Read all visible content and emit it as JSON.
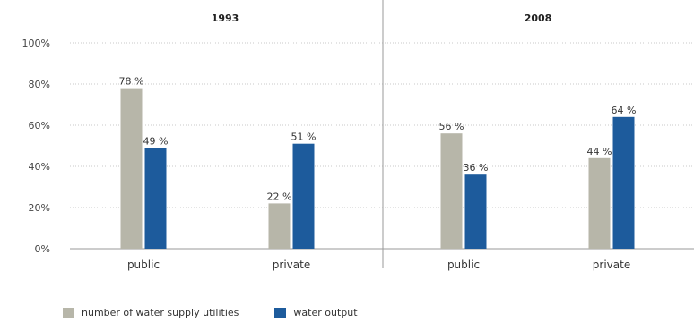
{
  "chart_data": {
    "type": "bar",
    "groups": [
      {
        "title": "1993",
        "categories": [
          "public",
          "private"
        ]
      },
      {
        "title": "2008",
        "categories": [
          "public",
          "private"
        ]
      }
    ],
    "series": [
      {
        "name": "number of water supply utilities",
        "color": "#b7b6a9",
        "values": [
          78,
          22,
          56,
          44
        ]
      },
      {
        "name": "water output",
        "color": "#1d5b9c",
        "values": [
          49,
          51,
          36,
          64
        ]
      }
    ],
    "data_labels": {
      "number of water supply utilities": [
        "78 %",
        "22 %",
        "56 %",
        "44 %"
      ],
      "water output": [
        "49 %",
        "51 %",
        "36 %",
        "64 %"
      ]
    },
    "y_ticks": [
      "0%",
      "20%",
      "40%",
      "60%",
      "80%",
      "100%"
    ],
    "ylim": [
      0,
      100
    ],
    "grid": true,
    "legend_position": "bottom-left"
  }
}
